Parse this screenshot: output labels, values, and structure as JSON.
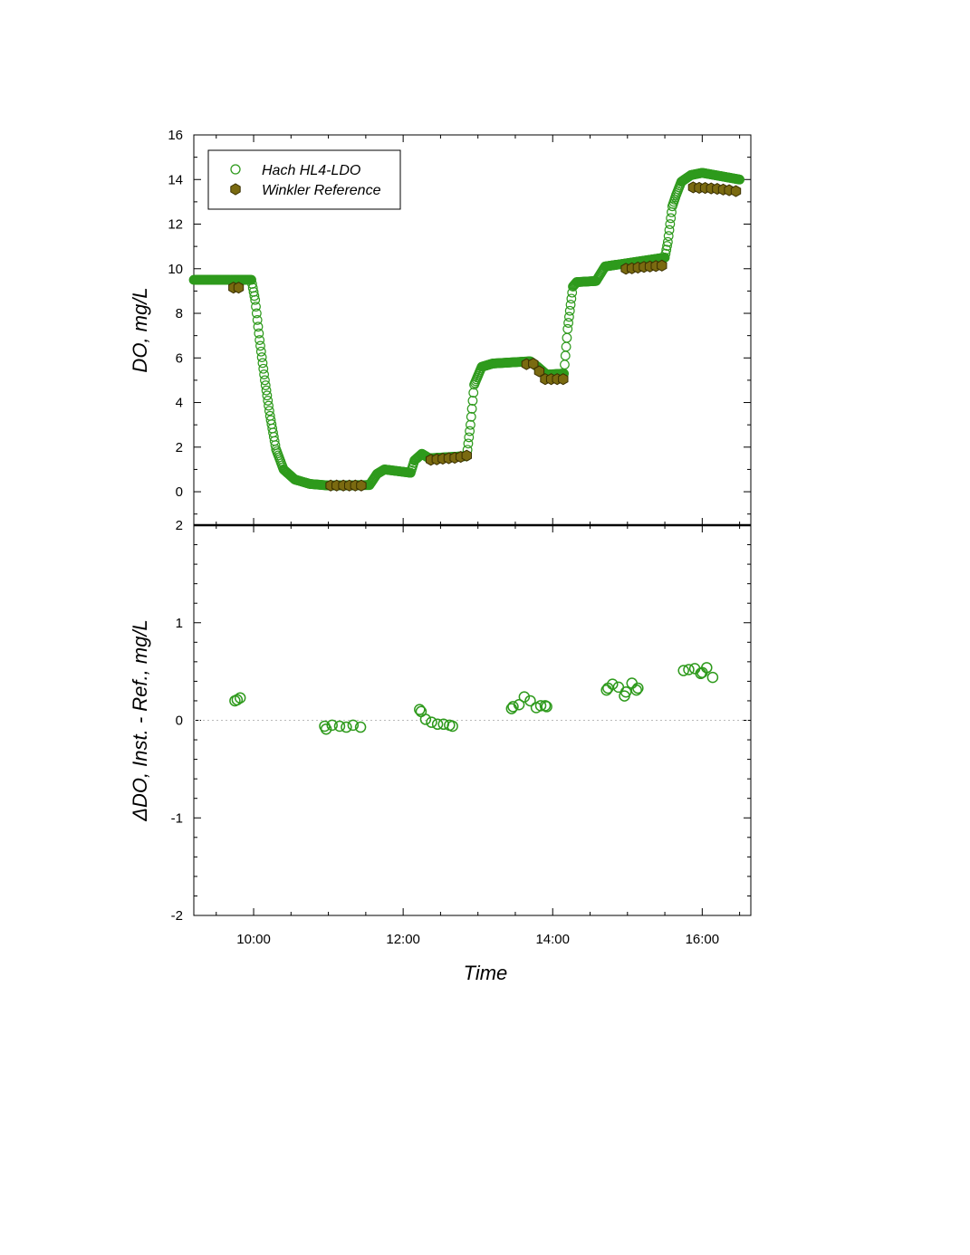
{
  "chart_data": [
    {
      "type": "scatter",
      "panel": "top",
      "xlabel": "",
      "ylabel": "DO, mg/L",
      "xlim": [
        9.2,
        16.65
      ],
      "ylim": [
        -1.5,
        16
      ],
      "yticks": [
        0,
        2,
        4,
        6,
        8,
        10,
        12,
        14,
        16
      ],
      "legend": {
        "placement": "top-left",
        "entries": [
          "Hach HL4-LDO",
          "Winkler Reference"
        ]
      },
      "grid": false,
      "colors": {
        "hach": "#2e9a1c",
        "winkler_fill": "#7a6a10",
        "winkler_edge": "#3a3000"
      },
      "hach_profile": {
        "x": [
          9.2,
          9.97,
          10.02,
          10.08,
          10.15,
          10.22,
          10.3,
          10.4,
          10.55,
          10.75,
          11.0,
          11.55,
          11.65,
          11.75,
          12.1,
          12.15,
          12.25,
          12.35,
          12.85,
          12.9,
          12.95,
          13.05,
          13.2,
          13.7,
          13.8,
          13.92,
          14.15,
          14.2,
          14.27,
          14.32,
          14.58,
          14.7,
          15.5,
          15.54,
          15.6,
          15.65,
          15.72,
          15.85,
          16.0,
          16.5
        ],
        "y": [
          9.5,
          9.5,
          8.6,
          6.8,
          5.0,
          3.4,
          1.9,
          1.0,
          0.55,
          0.35,
          0.28,
          0.3,
          0.8,
          1.0,
          0.85,
          1.4,
          1.7,
          1.5,
          1.6,
          3.0,
          4.8,
          5.6,
          5.75,
          5.85,
          5.6,
          5.25,
          5.3,
          7.3,
          9.2,
          9.4,
          9.45,
          10.1,
          10.5,
          11.2,
          12.8,
          13.3,
          13.9,
          14.2,
          14.3,
          14.0
        ]
      },
      "series": [
        {
          "name": "Winkler Reference",
          "x": [
            9.73,
            9.8,
            11.03,
            11.11,
            11.2,
            11.28,
            11.36,
            11.44,
            12.37,
            12.45,
            12.53,
            12.61,
            12.69,
            12.77,
            12.85,
            13.65,
            13.74,
            13.82,
            13.9,
            13.98,
            14.06,
            14.14,
            14.98,
            15.06,
            15.14,
            15.22,
            15.3,
            15.38,
            15.46,
            15.88,
            15.96,
            16.04,
            16.12,
            16.2,
            16.28,
            16.36,
            16.45
          ],
          "y": [
            9.15,
            9.15,
            0.28,
            0.28,
            0.28,
            0.28,
            0.28,
            0.28,
            1.43,
            1.45,
            1.48,
            1.5,
            1.52,
            1.56,
            1.62,
            5.72,
            5.74,
            5.4,
            5.05,
            5.05,
            5.05,
            5.05,
            10.0,
            10.02,
            10.05,
            10.08,
            10.1,
            10.12,
            10.14,
            13.65,
            13.63,
            13.62,
            13.6,
            13.58,
            13.55,
            13.52,
            13.48
          ]
        }
      ]
    },
    {
      "type": "scatter",
      "panel": "bottom",
      "xlabel": "Time",
      "ylabel": "ΔDO, Inst. - Ref., mg/L",
      "xlim": [
        9.2,
        16.65
      ],
      "ylim": [
        -2,
        2
      ],
      "yticks": [
        -2,
        -1,
        0,
        1,
        2
      ],
      "xticks": [
        10,
        12,
        14,
        16
      ],
      "xtick_labels": [
        "10:00",
        "12:00",
        "14:00",
        "16:00"
      ],
      "reference_line": 0,
      "series": [
        {
          "name": "",
          "x": [
            9.75,
            9.78,
            9.82,
            10.95,
            10.97,
            11.05,
            11.15,
            11.24,
            11.33,
            11.43,
            12.22,
            12.24,
            12.3,
            12.38,
            12.46,
            12.54,
            12.62,
            12.66,
            13.45,
            13.47,
            13.55,
            13.62,
            13.7,
            13.78,
            13.84,
            13.9,
            13.92,
            14.72,
            14.74,
            14.8,
            14.88,
            14.96,
            14.98,
            15.06,
            15.12,
            15.14,
            15.75,
            15.82,
            15.9,
            15.98,
            16.0,
            16.06,
            16.14
          ],
          "y": [
            0.2,
            0.21,
            0.23,
            -0.06,
            -0.09,
            -0.05,
            -0.06,
            -0.07,
            -0.05,
            -0.07,
            0.11,
            0.09,
            0.01,
            -0.02,
            -0.04,
            -0.04,
            -0.05,
            -0.06,
            0.12,
            0.14,
            0.16,
            0.24,
            0.2,
            0.13,
            0.15,
            0.15,
            0.14,
            0.31,
            0.33,
            0.37,
            0.34,
            0.25,
            0.29,
            0.38,
            0.31,
            0.33,
            0.51,
            0.52,
            0.53,
            0.48,
            0.49,
            0.54,
            0.44
          ]
        }
      ]
    }
  ]
}
